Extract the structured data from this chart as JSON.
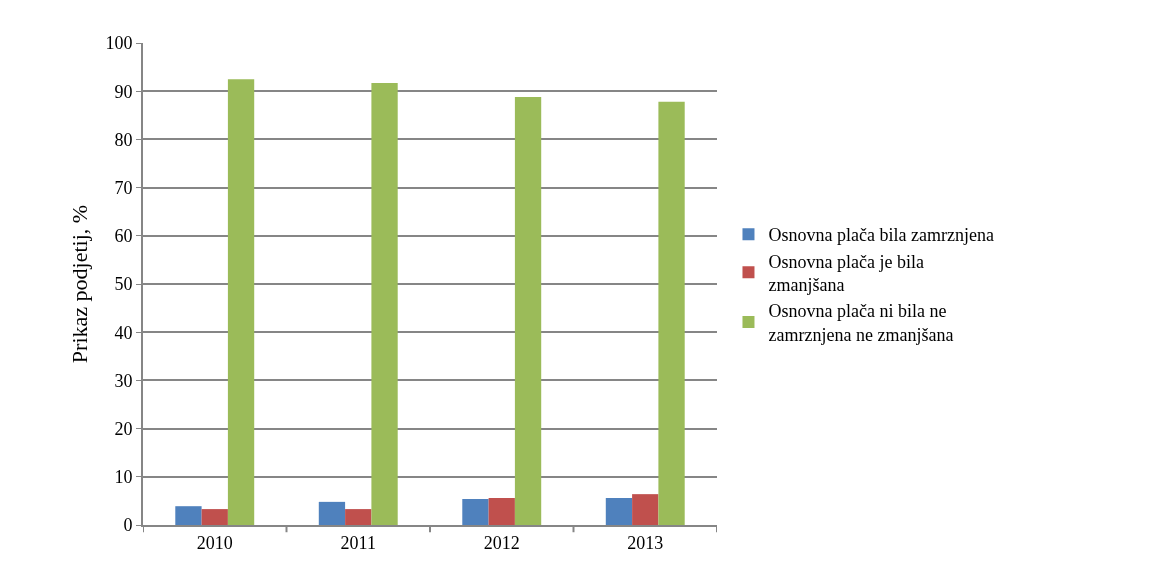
{
  "chart_data": {
    "type": "bar",
    "ylabel": "Prikaz podjetij, %",
    "categories": [
      "2010",
      "2011",
      "2012",
      "2013"
    ],
    "series": [
      {
        "name": "Osnovna plača bila zamrznjena",
        "color": "#4f81bd",
        "values": [
          3.9,
          4.8,
          5.4,
          5.6
        ]
      },
      {
        "name": "Osnovna plača je bila zmanjšana",
        "color": "#c0504d",
        "values": [
          3.3,
          3.3,
          5.6,
          6.4
        ]
      },
      {
        "name": "Osnovna plača ni bila ne zamrznjena ne zmanjšana",
        "color": "#9bbb59",
        "values": [
          92.5,
          91.7,
          88.8,
          87.8
        ]
      }
    ],
    "ylim": [
      0,
      100
    ],
    "yticks": [
      0,
      10,
      20,
      30,
      40,
      50,
      60,
      70,
      80,
      90,
      100
    ],
    "grid": "y",
    "legend": "right"
  }
}
